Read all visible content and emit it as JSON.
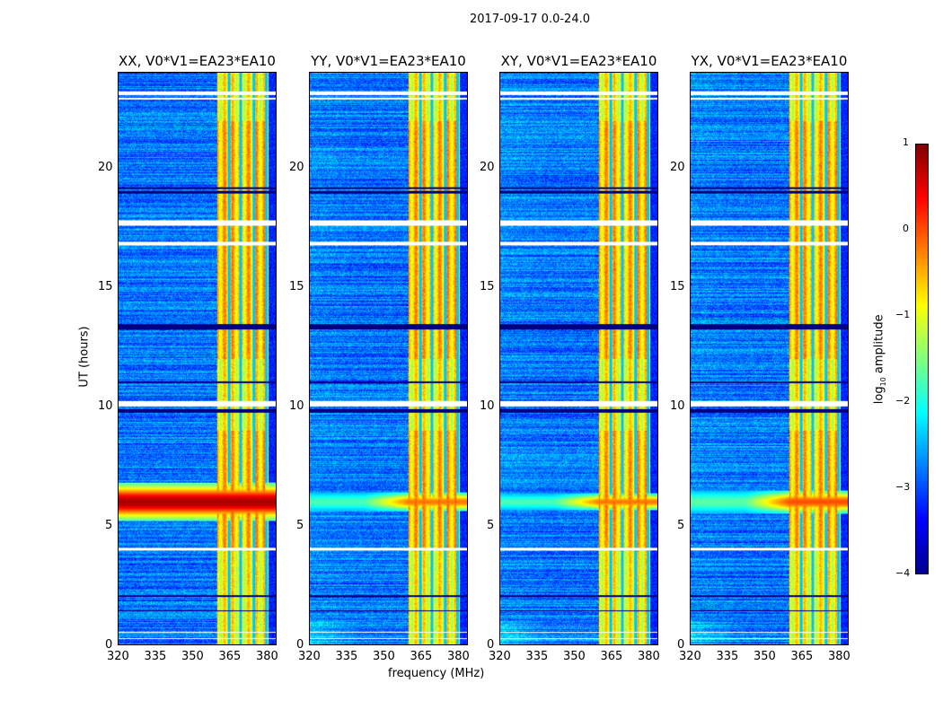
{
  "suptitle": "2017-09-17 0.0-24.0",
  "chart_data": {
    "type": "heatmap",
    "title": "2017-09-17 0.0-24.0",
    "xlabel": "frequency (MHz)",
    "ylabel": "UT (hours)",
    "xlim": [
      320,
      384
    ],
    "ylim": [
      0,
      24
    ],
    "xticks": [
      320,
      335,
      350,
      365,
      380
    ],
    "yticks": [
      0,
      5,
      10,
      15,
      20
    ],
    "colorbar": {
      "label_prefix": "log",
      "label_sub": "10",
      "label_suffix": " amplitude",
      "range": [
        -4,
        1
      ],
      "ticks": [
        1,
        0,
        -1,
        -2,
        -3,
        -4
      ],
      "colormap": "jet"
    },
    "panels": [
      {
        "title": "XX, V0*V1=EA23*EA10",
        "event_strength": 3.6,
        "event_width_hours": 0.5
      },
      {
        "title": "YY, V0*V1=EA23*EA10",
        "event_strength": 2.6,
        "event_width_hours": 0.25
      },
      {
        "title": "XY, V0*V1=EA23*EA10",
        "event_strength": 2.6,
        "event_width_hours": 0.22
      },
      {
        "title": "YX, V0*V1=EA23*EA10",
        "event_strength": 2.8,
        "event_width_hours": 0.3
      }
    ],
    "bright_band_mhz": [
      360,
      380.8
    ],
    "band_gaps_mhz": [
      364.8,
      369.5,
      374.9,
      380
    ],
    "background_log_amplitude": -2.8,
    "band_log_amplitude": -0.9,
    "event_center_hours": 6.0,
    "flagged_hours": [
      [
        23.08,
        23.23
      ],
      [
        22.9,
        22.95
      ],
      [
        17.6,
        17.82
      ],
      [
        16.77,
        16.92
      ],
      [
        10.02,
        10.24
      ],
      [
        3.98,
        4.09
      ],
      [
        0.49,
        0.56
      ],
      [
        0.25,
        0.3
      ]
    ],
    "low_hours": [
      [
        18.95,
        19.05
      ],
      [
        19.15,
        19.2
      ],
      [
        13.25,
        13.45
      ],
      [
        9.75,
        9.9
      ],
      [
        11.0,
        11.05
      ],
      [
        2.0,
        2.1
      ],
      [
        1.4,
        1.45
      ]
    ]
  }
}
